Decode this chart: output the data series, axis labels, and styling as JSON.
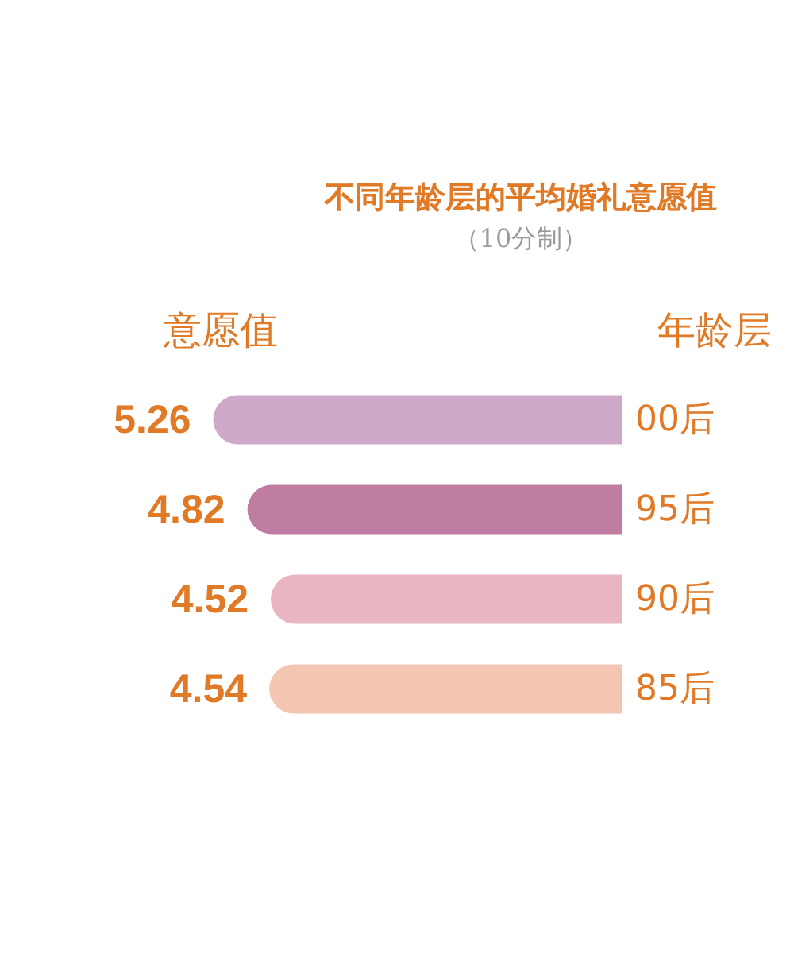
{
  "chart_data": {
    "type": "bar",
    "orientation": "horizontal",
    "title": "不同年龄层的平均婚礼意愿值",
    "subtitle": "（10分制）",
    "xlabel": "意愿值",
    "ylabel": "年龄层",
    "categories": [
      "00后",
      "95后",
      "90后",
      "85后"
    ],
    "values": [
      5.26,
      4.82,
      4.52,
      4.54
    ],
    "colors": [
      "#cfa9c9",
      "#bf7da2",
      "#e9b5c1",
      "#f3c6b3"
    ],
    "data_labels": true
  }
}
